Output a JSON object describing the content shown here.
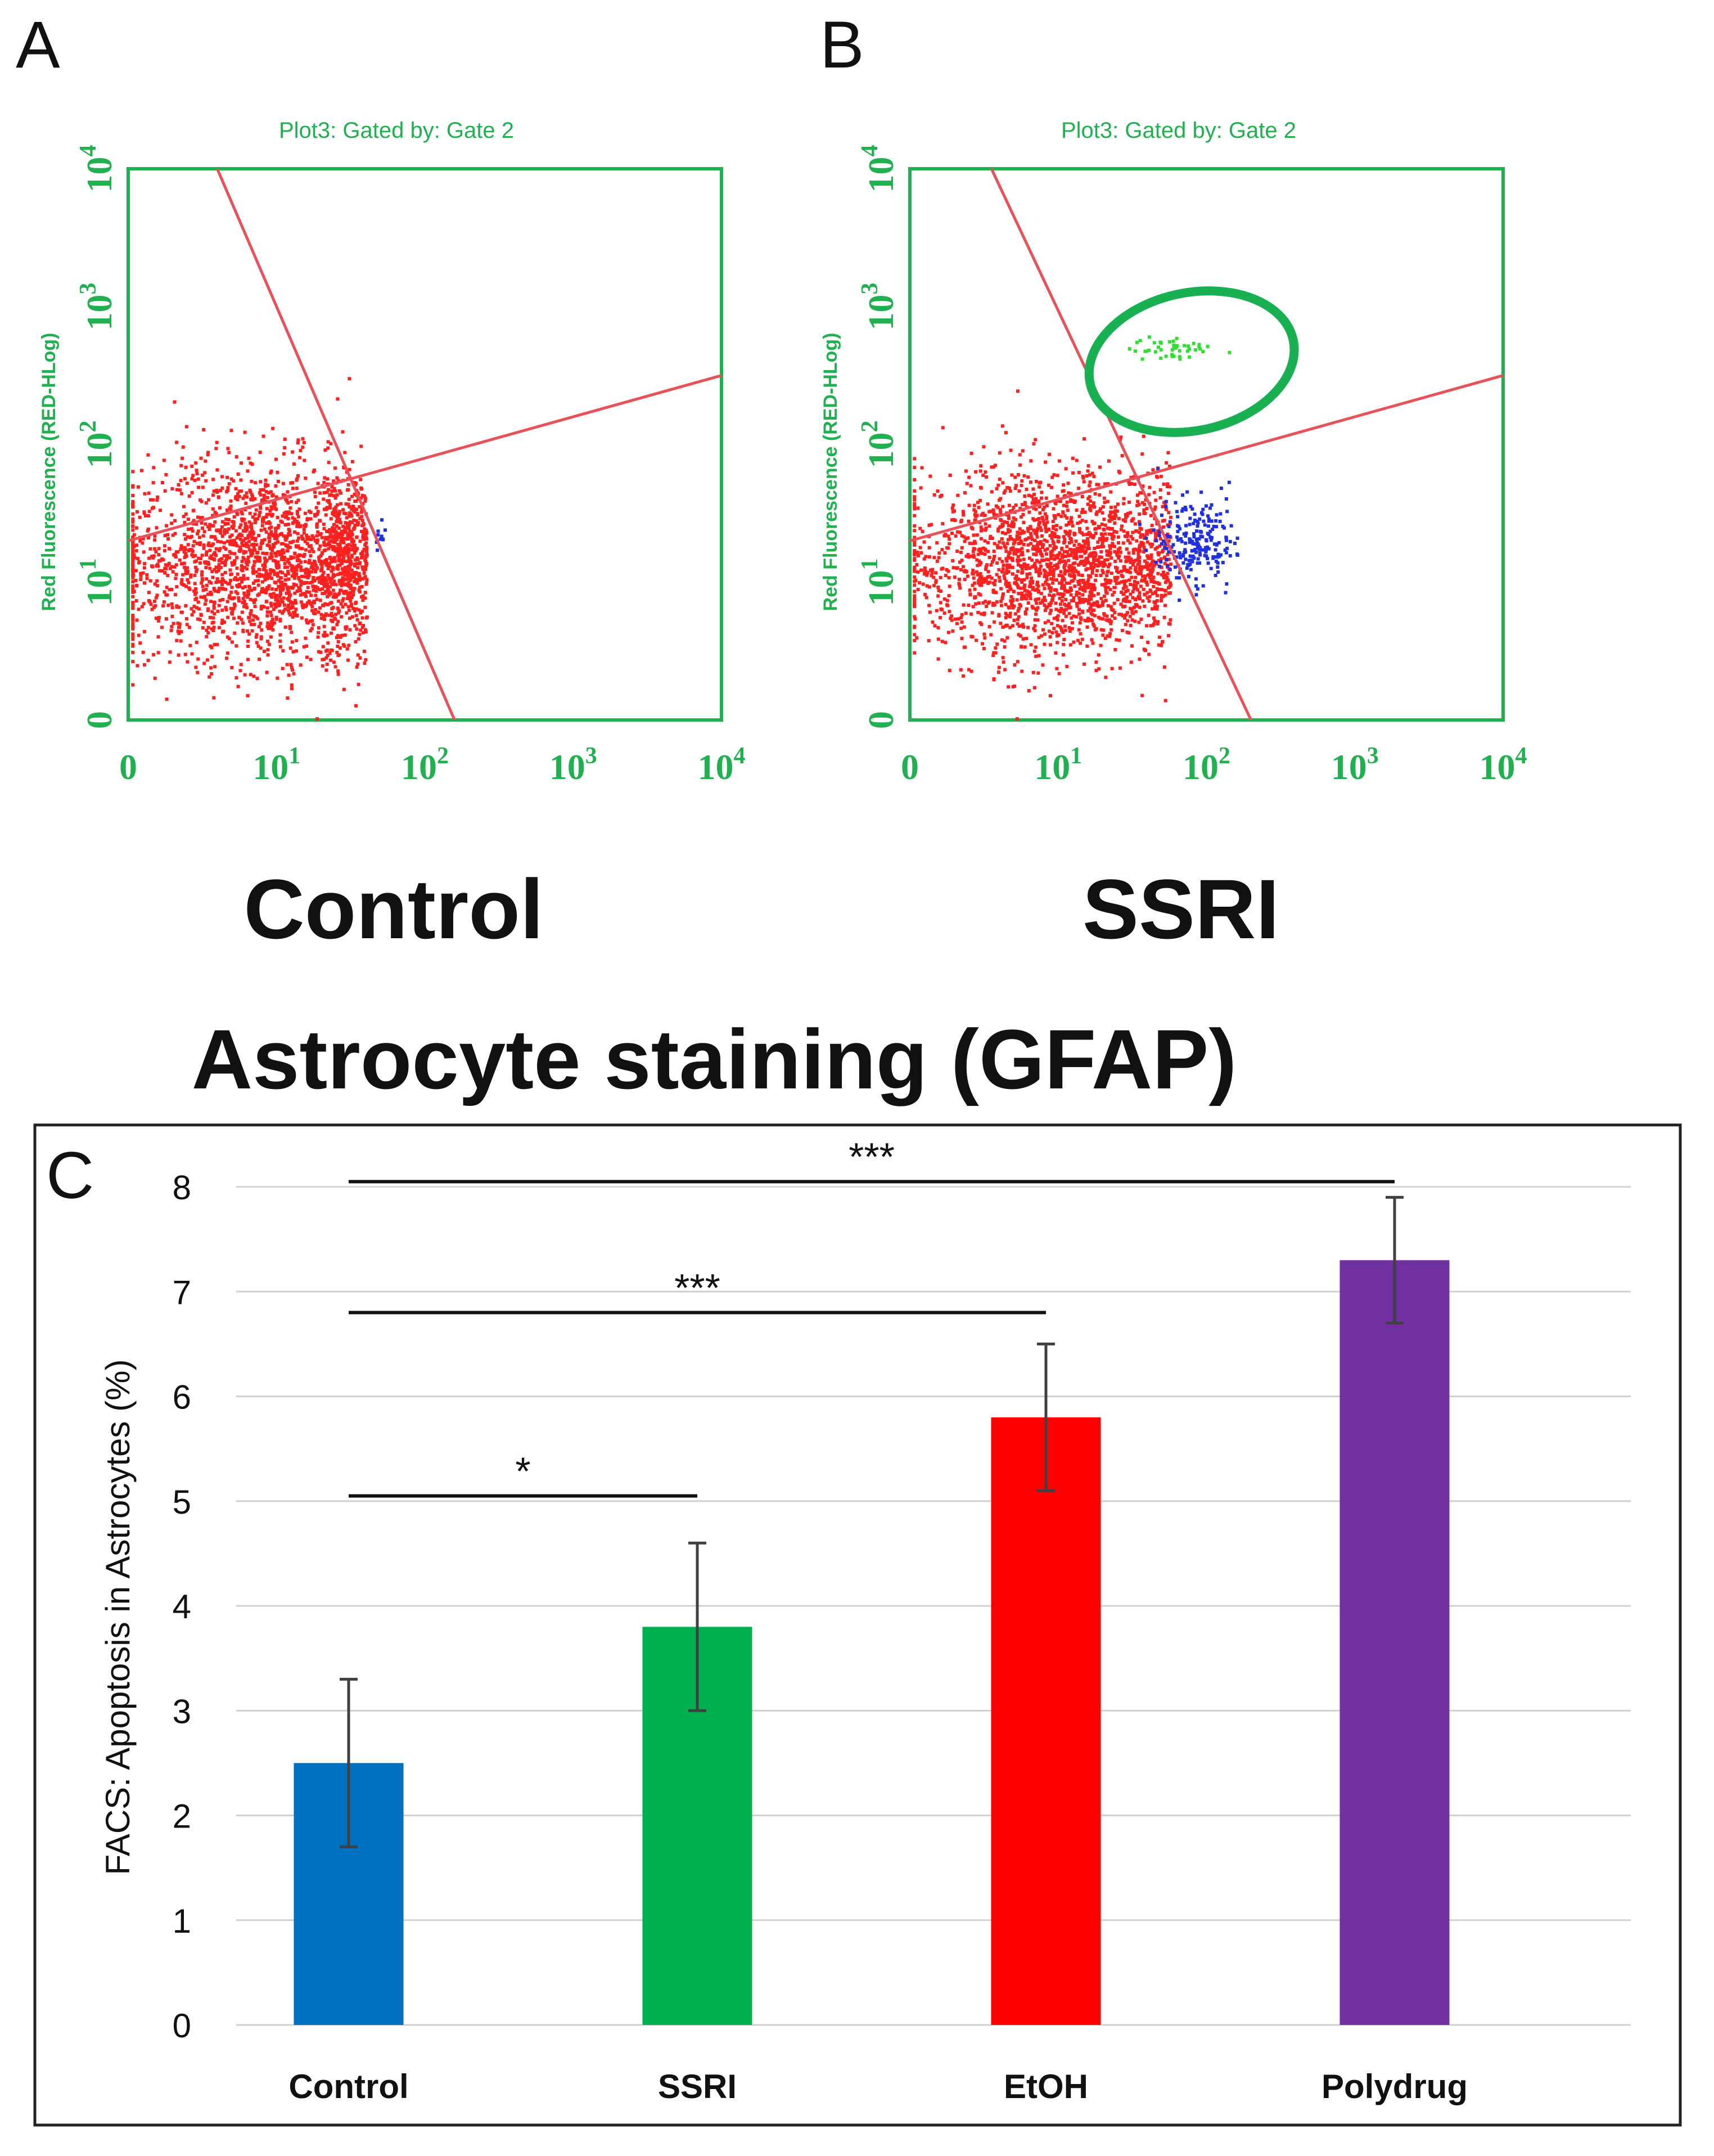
{
  "panel_labels": {
    "a": "A",
    "b": "B",
    "c": "C"
  },
  "condition_labels": {
    "a": "Control",
    "b": "SSRI"
  },
  "figure_caption": "Astrocyte staining  (GFAP)",
  "colors": {
    "flow_axes": "#20b050",
    "flow_gate_line": "#e8505a",
    "live_cells": "#ff2020",
    "early_apoptotic": "#2030e0",
    "late_apoptotic": "#30e030",
    "gate_ellipse": "#18b050"
  },
  "chart_data": [
    {
      "type": "scatter",
      "panel": "A",
      "title": "Plot3:  Gated by:  Gate 2",
      "ylabel": "Red Fluorescence (RED-HLog)",
      "xlabel": "",
      "scale": "log",
      "x_ticks": [
        {
          "base": "0",
          "exp": ""
        },
        {
          "base": "10",
          "exp": "1"
        },
        {
          "base": "10",
          "exp": "2"
        },
        {
          "base": "10",
          "exp": "3"
        },
        {
          "base": "10",
          "exp": "4"
        }
      ],
      "y_ticks": [
        {
          "base": "0",
          "exp": ""
        },
        {
          "base": "10",
          "exp": "1"
        },
        {
          "base": "10",
          "exp": "2"
        },
        {
          "base": "10",
          "exp": "3"
        },
        {
          "base": "10",
          "exp": "4"
        }
      ],
      "xlim_decades": [
        0,
        4
      ],
      "ylim_decades": [
        0,
        4
      ],
      "populations": [
        {
          "name": "",
          "color": "#ff2020",
          "center_decades": [
            1.0,
            1.15
          ],
          "spread_decades": [
            0.55,
            0.35
          ],
          "count": 2300,
          "x_max_decades": 1.6
        },
        {
          "name": "",
          "color": "#2030e0",
          "center_decades": [
            1.72,
            1.35
          ],
          "spread_decades": [
            0.06,
            0.08
          ],
          "count": 10,
          "x_max_decades": 1.85
        }
      ],
      "gate_lines_decades": [
        {
          "from": [
            0.6,
            4.0
          ],
          "to": [
            2.2,
            0.0
          ]
        },
        {
          "from": [
            0.0,
            1.3
          ],
          "to": [
            4.0,
            2.5
          ]
        }
      ],
      "gate_ellipse": null
    },
    {
      "type": "scatter",
      "panel": "B",
      "title": "Plot3:  Gated by:  Gate 2",
      "ylabel": "Red Fluorescence (RED-HLog)",
      "xlabel": "",
      "scale": "log",
      "x_ticks": [
        {
          "base": "0",
          "exp": ""
        },
        {
          "base": "10",
          "exp": "1"
        },
        {
          "base": "10",
          "exp": "2"
        },
        {
          "base": "10",
          "exp": "3"
        },
        {
          "base": "10",
          "exp": "4"
        }
      ],
      "y_ticks": [
        {
          "base": "0",
          "exp": ""
        },
        {
          "base": "10",
          "exp": "1"
        },
        {
          "base": "10",
          "exp": "2"
        },
        {
          "base": "10",
          "exp": "3"
        },
        {
          "base": "10",
          "exp": "4"
        }
      ],
      "xlim_decades": [
        0,
        4
      ],
      "ylim_decades": [
        0,
        4
      ],
      "populations": [
        {
          "name": "",
          "color": "#ff2020",
          "center_decades": [
            1.0,
            1.15
          ],
          "spread_decades": [
            0.5,
            0.33
          ],
          "count": 2100,
          "x_max_decades": 1.75
        },
        {
          "name": "",
          "color": "#2030e0",
          "center_decades": [
            1.9,
            1.3
          ],
          "spread_decades": [
            0.12,
            0.15
          ],
          "count": 220,
          "x_max_decades": 2.2
        },
        {
          "name": "",
          "color": "#30e030",
          "center_decades": [
            1.75,
            2.7
          ],
          "spread_decades": [
            0.14,
            0.05
          ],
          "count": 45,
          "x_max_decades": 2.3
        }
      ],
      "gate_lines_decades": [
        {
          "from": [
            0.55,
            4.0
          ],
          "to": [
            2.3,
            0.0
          ]
        },
        {
          "from": [
            0.0,
            1.3
          ],
          "to": [
            4.0,
            2.5
          ]
        }
      ],
      "gate_ellipse": {
        "center_decades": [
          1.9,
          2.6
        ],
        "radii_decades": [
          0.7,
          0.5
        ],
        "rotation_deg": -12
      }
    },
    {
      "type": "bar",
      "panel": "C",
      "title": "",
      "xlabel": "",
      "ylabel": "FACS: Apoptosis in Astrocytes (%)",
      "categories": [
        "Control",
        "SSRI",
        "EtOH",
        "Polydrug"
      ],
      "values": [
        2.5,
        3.8,
        5.8,
        7.3
      ],
      "errors": [
        0.8,
        0.8,
        0.7,
        0.6
      ],
      "bar_colors": [
        "#0070c0",
        "#00b050",
        "#ff0000",
        "#7030a0"
      ],
      "ylim": [
        0,
        8
      ],
      "yticks": [
        0,
        1,
        2,
        3,
        4,
        5,
        6,
        7,
        8
      ],
      "grid": true,
      "significance": [
        {
          "from": 0,
          "to": 1,
          "y": 5.05,
          "label": "*"
        },
        {
          "from": 0,
          "to": 2,
          "y": 6.8,
          "label": "***"
        },
        {
          "from": 0,
          "to": 3,
          "y": 8.05,
          "label": "***"
        }
      ]
    }
  ]
}
